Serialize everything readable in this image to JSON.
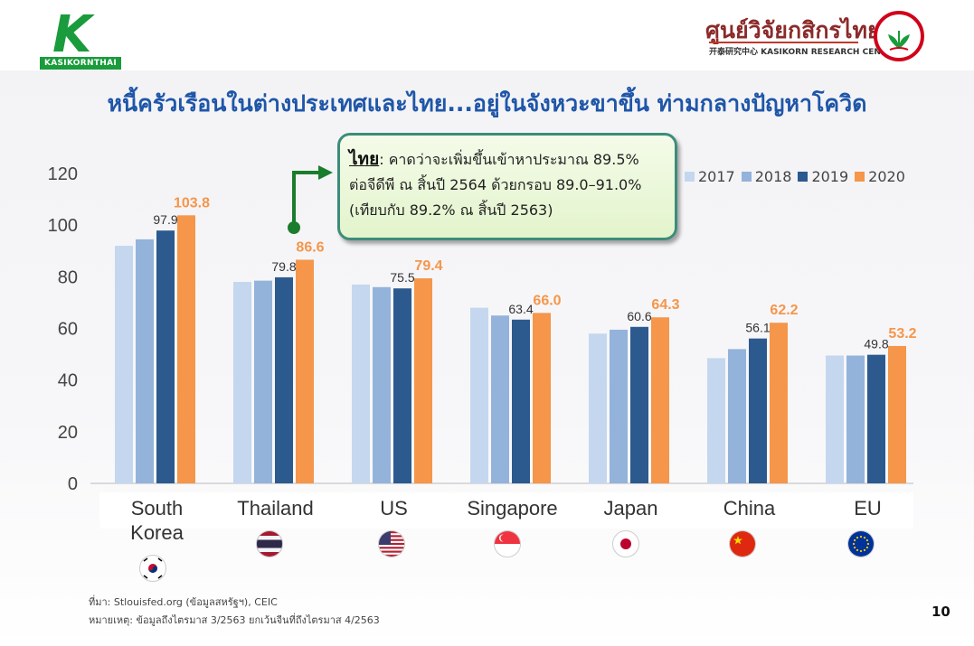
{
  "header": {
    "left_logo_text": "KASIKORNTHAI",
    "right_logo_title": "ศูนย์วิจัยกสิกรไทย",
    "right_logo_sub": "开泰研究中心 KASIKORN RESEARCH CENTER"
  },
  "title": "หนี้ครัวเรือนในต่างประเทศและไทย...อยู่ในจังหวะขาขึ้น ท่ามกลางปัญหาโควิด",
  "callout": {
    "lead": "ไทย",
    "line1": ": คาดว่าจะเพิ่มขึ้นเข้าหาประมาณ 89.5%",
    "line2": "ต่อจีดีพี ณ สิ้นปี 2564 ด้วยกรอบ 89.0–91.0%",
    "line3": "(เทียบกับ 89.2% ณ สิ้นปี 2563)"
  },
  "colors": {
    "s2017": "#c5d7ef",
    "s2018": "#94b3db",
    "s2019": "#2d5a8e",
    "s2020": "#f5964a",
    "accent_arrow": "#1a7d2c"
  },
  "chart_data": {
    "type": "bar",
    "categories": [
      "South Korea",
      "Thailand",
      "US",
      "Singapore",
      "Japan",
      "China",
      "EU"
    ],
    "category_lines": [
      [
        "South",
        "Korea"
      ],
      [
        "Thailand"
      ],
      [
        "US"
      ],
      [
        "Singapore"
      ],
      [
        "Japan"
      ],
      [
        "China"
      ],
      [
        "EU"
      ]
    ],
    "series": [
      {
        "name": "2017",
        "values": [
          92,
          78,
          77,
          68,
          58,
          48.5,
          49.5
        ]
      },
      {
        "name": "2018",
        "values": [
          94.5,
          78.5,
          76,
          65,
          59.5,
          52,
          49.5
        ]
      },
      {
        "name": "2019",
        "values": [
          97.9,
          79.8,
          75.5,
          63.4,
          60.6,
          56.1,
          49.8
        ]
      },
      {
        "name": "2020",
        "values": [
          103.8,
          86.6,
          79.4,
          66.0,
          64.3,
          62.2,
          53.2
        ]
      }
    ],
    "data_labels": {
      "2019": [
        "97.9",
        "79.8",
        "75.5",
        "63.4",
        "60.6",
        "56.1",
        "49.8"
      ],
      "2020": [
        "103.8",
        "86.6",
        "79.4",
        "66.0",
        "64.3",
        "62.2",
        "53.2"
      ]
    },
    "yticks": [
      "0",
      "20",
      "40",
      "60",
      "80",
      "100",
      "120"
    ],
    "ylim": [
      0,
      120
    ],
    "legend_position": "top-right",
    "grid": false
  },
  "flags": [
    "south-korea-flag-icon",
    "thailand-flag-icon",
    "us-flag-icon",
    "singapore-flag-icon",
    "japan-flag-icon",
    "china-flag-icon",
    "eu-flag-icon"
  ],
  "footer": {
    "source": "ที่มา: Stlouisfed.org (ข้อมูลสหรัฐฯ), CEIC",
    "note": "หมายเหตุ: ข้อมูลถึงไตรมาส 3/2563 ยกเว้นจีนที่ถึงไตรมาส 4/2563"
  },
  "page_number": "10"
}
